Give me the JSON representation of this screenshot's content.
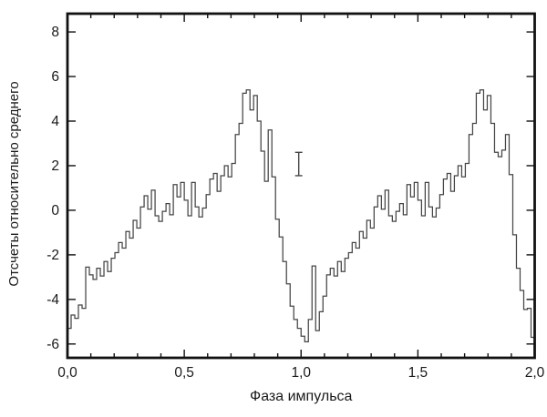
{
  "figure": {
    "x_axis_title": "Фаза импульса",
    "y_axis_title": "Отсчеты относительно среднего"
  },
  "chart_data": {
    "type": "line",
    "style": "step-histogram",
    "title": "",
    "xlabel": "Фаза импульса",
    "ylabel": "Отсчеты относительно среднего",
    "xlim": [
      0,
      2
    ],
    "ylim": [
      -6.62,
      8.82
    ],
    "grid": false,
    "legend": "none",
    "x_ticks_major": [
      0,
      0.5,
      1.0,
      1.5,
      2.0
    ],
    "x_tick_labels": [
      "0,0",
      "0,5",
      "1,0",
      "1,5",
      "2,0"
    ],
    "x_minor_tick_step": 0.1,
    "y_ticks_major": [
      8,
      6,
      4,
      2,
      0,
      -2,
      -4,
      -6
    ],
    "y_tick_labels": [
      "8",
      "6",
      "4",
      "2",
      "0",
      "-2",
      "-4",
      "-6"
    ],
    "bins_per_period": 64,
    "periods_shown": 2,
    "phase_start": 0,
    "bin_width": 0.015625,
    "line_color": "#454545",
    "frame_color": "#111111",
    "values": [
      -5.3,
      -4.7,
      -4.85,
      -4.25,
      -4.4,
      -2.55,
      -2.9,
      -3.1,
      -2.6,
      -2.95,
      -2.3,
      -2.75,
      -2.15,
      -1.9,
      -1.45,
      -1.7,
      -0.95,
      -1.25,
      -0.45,
      -0.8,
      0.15,
      0.65,
      0.05,
      0.9,
      -0.25,
      -0.5,
      -0.05,
      0.3,
      -0.2,
      1.15,
      0.6,
      1.25,
      0.45,
      -0.25,
      1.25,
      0.15,
      -0.3,
      0.1,
      0.7,
      1.4,
      1.65,
      0.85,
      1.55,
      2.0,
      1.5,
      2.1,
      3.4,
      3.9,
      5.25,
      5.4,
      4.5,
      5.15,
      4.0,
      2.65,
      1.3,
      3.6,
      1.5,
      -0.4,
      -1.2,
      -2.3,
      -3.3,
      -4.3,
      -4.9,
      -5.3,
      -5.65,
      -5.9,
      -4.9,
      -2.5,
      -5.4,
      -4.55,
      -3.85,
      -2.9,
      -2.6,
      -2.95,
      -2.3,
      -2.75,
      -2.15,
      -1.9,
      -1.45,
      -1.7,
      -0.95,
      -1.25,
      -0.45,
      -0.8,
      0.15,
      0.65,
      0.05,
      0.9,
      -0.25,
      -0.5,
      -0.05,
      0.3,
      -0.2,
      1.15,
      0.6,
      1.25,
      0.45,
      -0.25,
      1.25,
      0.15,
      -0.3,
      0.1,
      0.7,
      1.4,
      1.65,
      0.85,
      1.55,
      2.0,
      1.5,
      2.1,
      3.4,
      3.9,
      5.25,
      5.4,
      4.5,
      5.15,
      3.9,
      2.6,
      2.4,
      2.7,
      3.4,
      1.6,
      -1.1,
      -2.6,
      -3.6,
      -4.45,
      -4.4,
      -5.7
    ],
    "error_bar": {
      "x": 0.99,
      "y_top": 2.6,
      "y_bottom": 1.55
    }
  }
}
